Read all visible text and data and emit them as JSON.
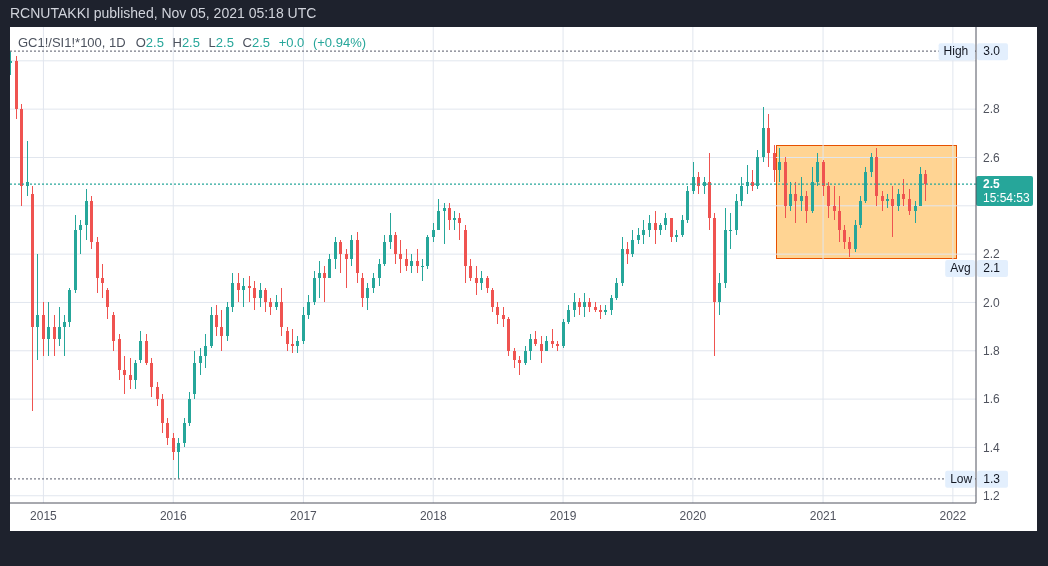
{
  "chart_data": {
    "type": "candlestick",
    "title": "GC1!/SI1!*100, 1D",
    "subtitle": "O2.5 H2.5 L2.5 C2.5 +0.0 (+0.94%)",
    "annotations": [
      "RCNUTAKKI published, Nov 05, 2021 05:18 UTC",
      "Avg 2.1",
      "15:54:53"
    ],
    "x": [
      "2014-10-01",
      "2014-10-16",
      "2014-11-01",
      "2014-11-16",
      "2014-12-01",
      "2014-12-16",
      "2015-01-01",
      "2015-01-16",
      "2015-02-01",
      "2015-02-16",
      "2015-03-01",
      "2015-03-16",
      "2015-04-01",
      "2015-04-16",
      "2015-05-01",
      "2015-05-16",
      "2015-06-01",
      "2015-06-16",
      "2015-07-01",
      "2015-07-16",
      "2015-08-01",
      "2015-08-16",
      "2015-09-01",
      "2015-09-16",
      "2015-10-01",
      "2015-10-16",
      "2015-11-01",
      "2015-11-16",
      "2015-12-01",
      "2015-12-16",
      "2016-01-01",
      "2016-01-16",
      "2016-02-01",
      "2016-02-16",
      "2016-03-01",
      "2016-03-16",
      "2016-04-01",
      "2016-04-16",
      "2016-05-01",
      "2016-05-16",
      "2016-06-01",
      "2016-06-16",
      "2016-07-01",
      "2016-07-16",
      "2016-08-01",
      "2016-08-16",
      "2016-09-01",
      "2016-09-16",
      "2016-10-01",
      "2016-10-16",
      "2016-11-01",
      "2016-11-16",
      "2016-12-01",
      "2016-12-16",
      "2017-01-01",
      "2017-01-16",
      "2017-02-01",
      "2017-02-16",
      "2017-03-01",
      "2017-03-16",
      "2017-04-01",
      "2017-04-16",
      "2017-05-01",
      "2017-05-16",
      "2017-06-01",
      "2017-06-16",
      "2017-07-01",
      "2017-07-16",
      "2017-08-01",
      "2017-08-16",
      "2017-09-01",
      "2017-09-16",
      "2017-10-01",
      "2017-10-16",
      "2017-11-01",
      "2017-11-16",
      "2017-12-01",
      "2017-12-16",
      "2018-01-01",
      "2018-01-16",
      "2018-02-01",
      "2018-02-16",
      "2018-03-01",
      "2018-03-16",
      "2018-04-01",
      "2018-04-16",
      "2018-05-01",
      "2018-05-16",
      "2018-06-01",
      "2018-06-16",
      "2018-07-01",
      "2018-07-16",
      "2018-08-01",
      "2018-08-16",
      "2018-09-01",
      "2018-09-16",
      "2018-10-01",
      "2018-10-16",
      "2018-11-01",
      "2018-11-16",
      "2018-12-01",
      "2018-12-16",
      "2019-01-01",
      "2019-01-16",
      "2019-02-01",
      "2019-02-16",
      "2019-03-01",
      "2019-03-16",
      "2019-04-01",
      "2019-04-16",
      "2019-05-01",
      "2019-05-16",
      "2019-06-01",
      "2019-06-16",
      "2019-07-01",
      "2019-07-16",
      "2019-08-01",
      "2019-08-16",
      "2019-09-01",
      "2019-09-16",
      "2019-10-01",
      "2019-10-16",
      "2019-11-01",
      "2019-11-16",
      "2019-12-01",
      "2019-12-16",
      "2020-01-01",
      "2020-01-16",
      "2020-02-01",
      "2020-02-16",
      "2020-03-01",
      "2020-03-16",
      "2020-04-01",
      "2020-04-16",
      "2020-05-01",
      "2020-05-16",
      "2020-06-01",
      "2020-06-16",
      "2020-07-01",
      "2020-07-16",
      "2020-08-01",
      "2020-08-16",
      "2020-09-01",
      "2020-09-16",
      "2020-10-01",
      "2020-10-16",
      "2020-11-01",
      "2020-11-16",
      "2020-12-01",
      "2020-12-16",
      "2021-01-01",
      "2021-01-16",
      "2021-02-01",
      "2021-02-16",
      "2021-03-01",
      "2021-03-16",
      "2021-04-01",
      "2021-04-16",
      "2021-05-01",
      "2021-05-16",
      "2021-06-01",
      "2021-06-16",
      "2021-07-01",
      "2021-07-16",
      "2021-08-01",
      "2021-08-16",
      "2021-09-01",
      "2021-09-16",
      "2021-10-01",
      "2021-10-16"
    ],
    "ohlc": [
      [
        2.99,
        3.04,
        2.94,
        3.0
      ],
      [
        3.0,
        3.02,
        2.76,
        2.8
      ],
      [
        2.8,
        2.82,
        2.4,
        2.48
      ],
      [
        2.48,
        2.67,
        2.44,
        2.5
      ],
      [
        2.45,
        2.48,
        1.55,
        1.9
      ],
      [
        1.9,
        2.2,
        1.76,
        1.95
      ],
      [
        1.95,
        2.0,
        1.78,
        1.85
      ],
      [
        1.85,
        2.0,
        1.78,
        1.9
      ],
      [
        1.9,
        1.95,
        1.78,
        1.85
      ],
      [
        1.85,
        1.98,
        1.82,
        1.9
      ],
      [
        1.9,
        1.95,
        1.78,
        1.92
      ],
      [
        1.92,
        2.06,
        1.9,
        2.05
      ],
      [
        2.05,
        2.36,
        2.04,
        2.3
      ],
      [
        2.3,
        2.34,
        2.2,
        2.32
      ],
      [
        2.32,
        2.47,
        2.26,
        2.42
      ],
      [
        2.42,
        2.44,
        2.22,
        2.25
      ],
      [
        2.25,
        2.27,
        2.04,
        2.1
      ],
      [
        2.1,
        2.16,
        2.02,
        2.08
      ],
      [
        2.05,
        2.06,
        1.93,
        1.98
      ],
      [
        1.95,
        1.96,
        1.8,
        1.84
      ],
      [
        1.85,
        1.87,
        1.68,
        1.72
      ],
      [
        1.72,
        1.78,
        1.62,
        1.7
      ],
      [
        1.7,
        1.77,
        1.64,
        1.68
      ],
      [
        1.68,
        1.76,
        1.64,
        1.75
      ],
      [
        1.76,
        1.88,
        1.75,
        1.84
      ],
      [
        1.84,
        1.87,
        1.74,
        1.75
      ],
      [
        1.75,
        1.77,
        1.61,
        1.65
      ],
      [
        1.65,
        1.67,
        1.57,
        1.6
      ],
      [
        1.6,
        1.62,
        1.46,
        1.5
      ],
      [
        1.5,
        1.52,
        1.41,
        1.44
      ],
      [
        1.44,
        1.46,
        1.35,
        1.38
      ],
      [
        1.38,
        1.44,
        1.27,
        1.42
      ],
      [
        1.42,
        1.52,
        1.4,
        1.5
      ],
      [
        1.5,
        1.63,
        1.49,
        1.6
      ],
      [
        1.62,
        1.8,
        1.6,
        1.75
      ],
      [
        1.75,
        1.81,
        1.7,
        1.78
      ],
      [
        1.78,
        1.87,
        1.73,
        1.82
      ],
      [
        1.82,
        1.98,
        1.81,
        1.95
      ],
      [
        1.95,
        1.99,
        1.86,
        1.9
      ],
      [
        1.9,
        1.97,
        1.8,
        1.86
      ],
      [
        1.86,
        2.0,
        1.84,
        1.98
      ],
      [
        1.98,
        2.12,
        1.96,
        2.08
      ],
      [
        2.08,
        2.12,
        2.0,
        2.05
      ],
      [
        2.05,
        2.1,
        1.98,
        2.07
      ],
      [
        2.07,
        2.11,
        2.0,
        2.06
      ],
      [
        2.06,
        2.09,
        1.97,
        2.02
      ],
      [
        2.02,
        2.08,
        1.98,
        2.05
      ],
      [
        2.05,
        2.06,
        1.96,
        2.0
      ],
      [
        2.0,
        2.02,
        1.95,
        1.98
      ],
      [
        1.98,
        2.03,
        1.97,
        2.0
      ],
      [
        2.0,
        2.06,
        1.86,
        1.9
      ],
      [
        1.88,
        1.9,
        1.8,
        1.83
      ],
      [
        1.83,
        1.89,
        1.79,
        1.82
      ],
      [
        1.82,
        1.86,
        1.79,
        1.84
      ],
      [
        1.84,
        1.98,
        1.83,
        1.95
      ],
      [
        1.95,
        2.03,
        1.93,
        2.0
      ],
      [
        2.0,
        2.13,
        1.99,
        2.1
      ],
      [
        2.1,
        2.17,
        2.02,
        2.12
      ],
      [
        2.12,
        2.15,
        2.0,
        2.1
      ],
      [
        2.1,
        2.2,
        2.1,
        2.18
      ],
      [
        2.18,
        2.27,
        2.14,
        2.25
      ],
      [
        2.25,
        2.26,
        2.12,
        2.2
      ],
      [
        2.2,
        2.22,
        2.06,
        2.18
      ],
      [
        2.18,
        2.28,
        2.15,
        2.26
      ],
      [
        2.26,
        2.29,
        2.08,
        2.12
      ],
      [
        2.1,
        2.12,
        1.98,
        2.02
      ],
      [
        2.02,
        2.08,
        1.97,
        2.06
      ],
      [
        2.06,
        2.12,
        2.04,
        2.1
      ],
      [
        2.1,
        2.18,
        2.07,
        2.16
      ],
      [
        2.16,
        2.28,
        2.15,
        2.25
      ],
      [
        2.25,
        2.37,
        2.22,
        2.28
      ],
      [
        2.28,
        2.29,
        2.16,
        2.2
      ],
      [
        2.2,
        2.26,
        2.12,
        2.18
      ],
      [
        2.18,
        2.22,
        2.13,
        2.15
      ],
      [
        2.15,
        2.2,
        2.12,
        2.17
      ],
      [
        2.17,
        2.22,
        2.12,
        2.15
      ],
      [
        2.15,
        2.18,
        2.09,
        2.15
      ],
      [
        2.15,
        2.28,
        2.14,
        2.27
      ],
      [
        2.27,
        2.33,
        2.25,
        2.3
      ],
      [
        2.3,
        2.43,
        2.3,
        2.38
      ],
      [
        2.38,
        2.41,
        2.24,
        2.39
      ],
      [
        2.39,
        2.41,
        2.3,
        2.34
      ],
      [
        2.34,
        2.38,
        2.3,
        2.35
      ],
      [
        2.35,
        2.37,
        2.26,
        2.33
      ],
      [
        2.3,
        2.32,
        2.08,
        2.15
      ],
      [
        2.15,
        2.18,
        2.09,
        2.1
      ],
      [
        2.1,
        2.15,
        2.03,
        2.08
      ],
      [
        2.08,
        2.13,
        2.05,
        2.1
      ],
      [
        2.1,
        2.11,
        2.04,
        2.06
      ],
      [
        2.05,
        2.06,
        1.96,
        1.98
      ],
      [
        1.98,
        2.0,
        1.91,
        1.95
      ],
      [
        1.95,
        1.98,
        1.9,
        1.93
      ],
      [
        1.93,
        1.94,
        1.78,
        1.8
      ],
      [
        1.8,
        1.81,
        1.73,
        1.76
      ],
      [
        1.76,
        1.78,
        1.7,
        1.75
      ],
      [
        1.75,
        1.82,
        1.74,
        1.8
      ],
      [
        1.8,
        1.87,
        1.76,
        1.85
      ],
      [
        1.85,
        1.88,
        1.82,
        1.83
      ],
      [
        1.83,
        1.86,
        1.75,
        1.8
      ],
      [
        1.8,
        1.86,
        1.8,
        1.84
      ],
      [
        1.84,
        1.89,
        1.81,
        1.83
      ],
      [
        1.83,
        1.84,
        1.8,
        1.82
      ],
      [
        1.82,
        1.93,
        1.81,
        1.92
      ],
      [
        1.92,
        1.99,
        1.91,
        1.97
      ],
      [
        1.97,
        2.04,
        1.94,
        2.0
      ],
      [
        2.0,
        2.02,
        1.95,
        1.98
      ],
      [
        1.98,
        2.04,
        1.94,
        2.0
      ],
      [
        2.0,
        2.02,
        1.96,
        1.98
      ],
      [
        1.98,
        2.0,
        1.96,
        1.97
      ],
      [
        1.97,
        1.99,
        1.93,
        1.96
      ],
      [
        1.96,
        1.99,
        1.95,
        1.97
      ],
      [
        1.97,
        2.03,
        1.95,
        2.02
      ],
      [
        2.02,
        2.1,
        2.01,
        2.08
      ],
      [
        2.08,
        2.27,
        2.07,
        2.22
      ],
      [
        2.22,
        2.25,
        2.16,
        2.2
      ],
      [
        2.2,
        2.3,
        2.19,
        2.26
      ],
      [
        2.26,
        2.31,
        2.24,
        2.28
      ],
      [
        2.28,
        2.34,
        2.24,
        2.3
      ],
      [
        2.3,
        2.36,
        2.27,
        2.33
      ],
      [
        2.33,
        2.38,
        2.24,
        2.3
      ],
      [
        2.3,
        2.33,
        2.28,
        2.32
      ],
      [
        2.32,
        2.37,
        2.3,
        2.35
      ],
      [
        2.35,
        2.35,
        2.25,
        2.27
      ],
      [
        2.27,
        2.3,
        2.25,
        2.28
      ],
      [
        2.28,
        2.36,
        2.27,
        2.34
      ],
      [
        2.34,
        2.48,
        2.33,
        2.46
      ],
      [
        2.46,
        2.58,
        2.45,
        2.52
      ],
      [
        2.52,
        2.54,
        2.45,
        2.48
      ],
      [
        2.48,
        2.52,
        2.45,
        2.5
      ],
      [
        2.5,
        2.62,
        2.3,
        2.35
      ],
      [
        2.35,
        2.37,
        1.78,
        2.0
      ],
      [
        2.0,
        2.12,
        1.95,
        2.08
      ],
      [
        2.08,
        2.39,
        2.06,
        2.3
      ],
      [
        2.3,
        2.37,
        2.22,
        2.3
      ],
      [
        2.3,
        2.45,
        2.28,
        2.42
      ],
      [
        2.42,
        2.52,
        2.4,
        2.48
      ],
      [
        2.48,
        2.57,
        2.45,
        2.5
      ],
      [
        2.5,
        2.55,
        2.46,
        2.48
      ],
      [
        2.48,
        2.63,
        2.47,
        2.6
      ],
      [
        2.6,
        2.81,
        2.58,
        2.72
      ],
      [
        2.72,
        2.78,
        2.56,
        2.62
      ],
      [
        2.62,
        2.65,
        2.5,
        2.55
      ],
      [
        2.55,
        2.64,
        2.5,
        2.58
      ],
      [
        2.58,
        2.6,
        2.35,
        2.4
      ],
      [
        2.4,
        2.5,
        2.38,
        2.45
      ],
      [
        2.45,
        2.5,
        2.33,
        2.42
      ],
      [
        2.42,
        2.52,
        2.38,
        2.44
      ],
      [
        2.44,
        2.46,
        2.33,
        2.38
      ],
      [
        2.38,
        2.56,
        2.37,
        2.5
      ],
      [
        2.5,
        2.62,
        2.48,
        2.58
      ],
      [
        2.58,
        2.59,
        2.44,
        2.48
      ],
      [
        2.48,
        2.5,
        2.35,
        2.4
      ],
      [
        2.4,
        2.48,
        2.34,
        2.38
      ],
      [
        2.38,
        2.44,
        2.25,
        2.3
      ],
      [
        2.3,
        2.32,
        2.22,
        2.25
      ],
      [
        2.25,
        2.27,
        2.19,
        2.22
      ],
      [
        2.22,
        2.34,
        2.21,
        2.32
      ],
      [
        2.32,
        2.44,
        2.31,
        2.42
      ],
      [
        2.42,
        2.56,
        2.41,
        2.54
      ],
      [
        2.54,
        2.62,
        2.52,
        2.6
      ],
      [
        2.6,
        2.64,
        2.4,
        2.44
      ],
      [
        2.44,
        2.46,
        2.38,
        2.42
      ],
      [
        2.42,
        2.45,
        2.39,
        2.43
      ],
      [
        2.43,
        2.48,
        2.27,
        2.4
      ],
      [
        2.4,
        2.47,
        2.38,
        2.45
      ],
      [
        2.45,
        2.51,
        2.4,
        2.43
      ],
      [
        2.43,
        2.47,
        2.36,
        2.38
      ],
      [
        2.38,
        2.42,
        2.33,
        2.4
      ],
      [
        2.4,
        2.56,
        2.4,
        2.53
      ],
      [
        2.53,
        2.55,
        2.42,
        2.49
      ]
    ],
    "colors": [
      "#26a69a",
      "#ef5350",
      "#ef5350",
      "#26a69a",
      "#ef5350",
      "#26a69a",
      "#ef5350",
      "#26a69a",
      "#ef5350",
      "#26a69a",
      "#26a69a",
      "#26a69a",
      "#26a69a",
      "#26a69a",
      "#26a69a",
      "#ef5350",
      "#ef5350",
      "#ef5350",
      "#ef5350",
      "#ef5350",
      "#ef5350",
      "#ef5350",
      "#ef5350",
      "#26a69a",
      "#26a69a",
      "#ef5350",
      "#ef5350",
      "#ef5350",
      "#ef5350",
      "#ef5350",
      "#ef5350",
      "#26a69a",
      "#26a69a",
      "#26a69a",
      "#26a69a",
      "#26a69a",
      "#26a69a",
      "#26a69a",
      "#ef5350",
      "#ef5350",
      "#26a69a",
      "#26a69a",
      "#ef5350",
      "#26a69a",
      "#ef5350",
      "#ef5350",
      "#26a69a",
      "#ef5350",
      "#ef5350",
      "#26a69a",
      "#ef5350",
      "#ef5350",
      "#ef5350",
      "#26a69a",
      "#26a69a",
      "#26a69a",
      "#26a69a",
      "#26a69a",
      "#ef5350",
      "#26a69a",
      "#26a69a",
      "#ef5350",
      "#ef5350",
      "#26a69a",
      "#ef5350",
      "#ef5350",
      "#26a69a",
      "#26a69a",
      "#26a69a",
      "#26a69a",
      "#26a69a",
      "#ef5350",
      "#ef5350",
      "#ef5350",
      "#26a69a",
      "#ef5350",
      "#26a69a",
      "#26a69a",
      "#26a69a",
      "#26a69a",
      "#26a69a",
      "#ef5350",
      "#26a69a",
      "#ef5350",
      "#ef5350",
      "#ef5350",
      "#ef5350",
      "#26a69a",
      "#ef5350",
      "#ef5350",
      "#ef5350",
      "#ef5350",
      "#ef5350",
      "#ef5350",
      "#ef5350",
      "#26a69a",
      "#26a69a",
      "#ef5350",
      "#ef5350",
      "#26a69a",
      "#ef5350",
      "#ef5350",
      "#26a69a",
      "#26a69a",
      "#26a69a",
      "#ef5350",
      "#26a69a",
      "#ef5350",
      "#ef5350",
      "#ef5350",
      "#26a69a",
      "#26a69a",
      "#26a69a",
      "#26a69a",
      "#ef5350",
      "#26a69a",
      "#26a69a",
      "#26a69a",
      "#26a69a",
      "#ef5350",
      "#26a69a",
      "#26a69a",
      "#ef5350",
      "#26a69a",
      "#26a69a",
      "#26a69a",
      "#26a69a",
      "#ef5350",
      "#26a69a",
      "#ef5350",
      "#ef5350",
      "#26a69a",
      "#26a69a",
      "#26a69a",
      "#26a69a",
      "#26a69a",
      "#26a69a",
      "#ef5350",
      "#26a69a",
      "#26a69a",
      "#ef5350",
      "#ef5350",
      "#26a69a",
      "#ef5350",
      "#26a69a",
      "#ef5350",
      "#26a69a",
      "#ef5350",
      "#26a69a",
      "#26a69a",
      "#ef5350",
      "#ef5350",
      "#ef5350",
      "#ef5350",
      "#ef5350",
      "#ef5350",
      "#26a69a",
      "#26a69a",
      "#26a69a",
      "#26a69a",
      "#ef5350",
      "#ef5350",
      "#26a69a",
      "#ef5350",
      "#26a69a",
      "#ef5350",
      "#ef5350",
      "#26a69a",
      "#26a69a",
      "#ef5350"
    ],
    "xlim": [
      "2014-09-29",
      "2022-03-07"
    ],
    "xticks": [
      "2015",
      "2016",
      "2017",
      "2018",
      "2019",
      "2020",
      "2021",
      "2022"
    ],
    "ylim": [
      1.17,
      3.14
    ],
    "yticks": [
      1.2,
      1.4,
      1.6,
      1.8,
      {
        "value": 2,
        "label": "2.0"
      },
      2.2,
      {
        "value": 2.4,
        "label": null
      },
      2.6,
      2.8,
      {
        "value": 3,
        "label": null
      }
    ],
    "grid": true,
    "ref_lines": [
      {
        "axis": "y",
        "value": 3.04,
        "label": "High 3.0",
        "line_style": "dotted"
      },
      {
        "axis": "y",
        "value": 2.49,
        "label": "2.5",
        "color": "#26a69a",
        "line_style": "dotted"
      },
      {
        "axis": "y",
        "value": 1.27,
        "label": "Low 1.3",
        "line_style": "dotted"
      }
    ]
  }
}
